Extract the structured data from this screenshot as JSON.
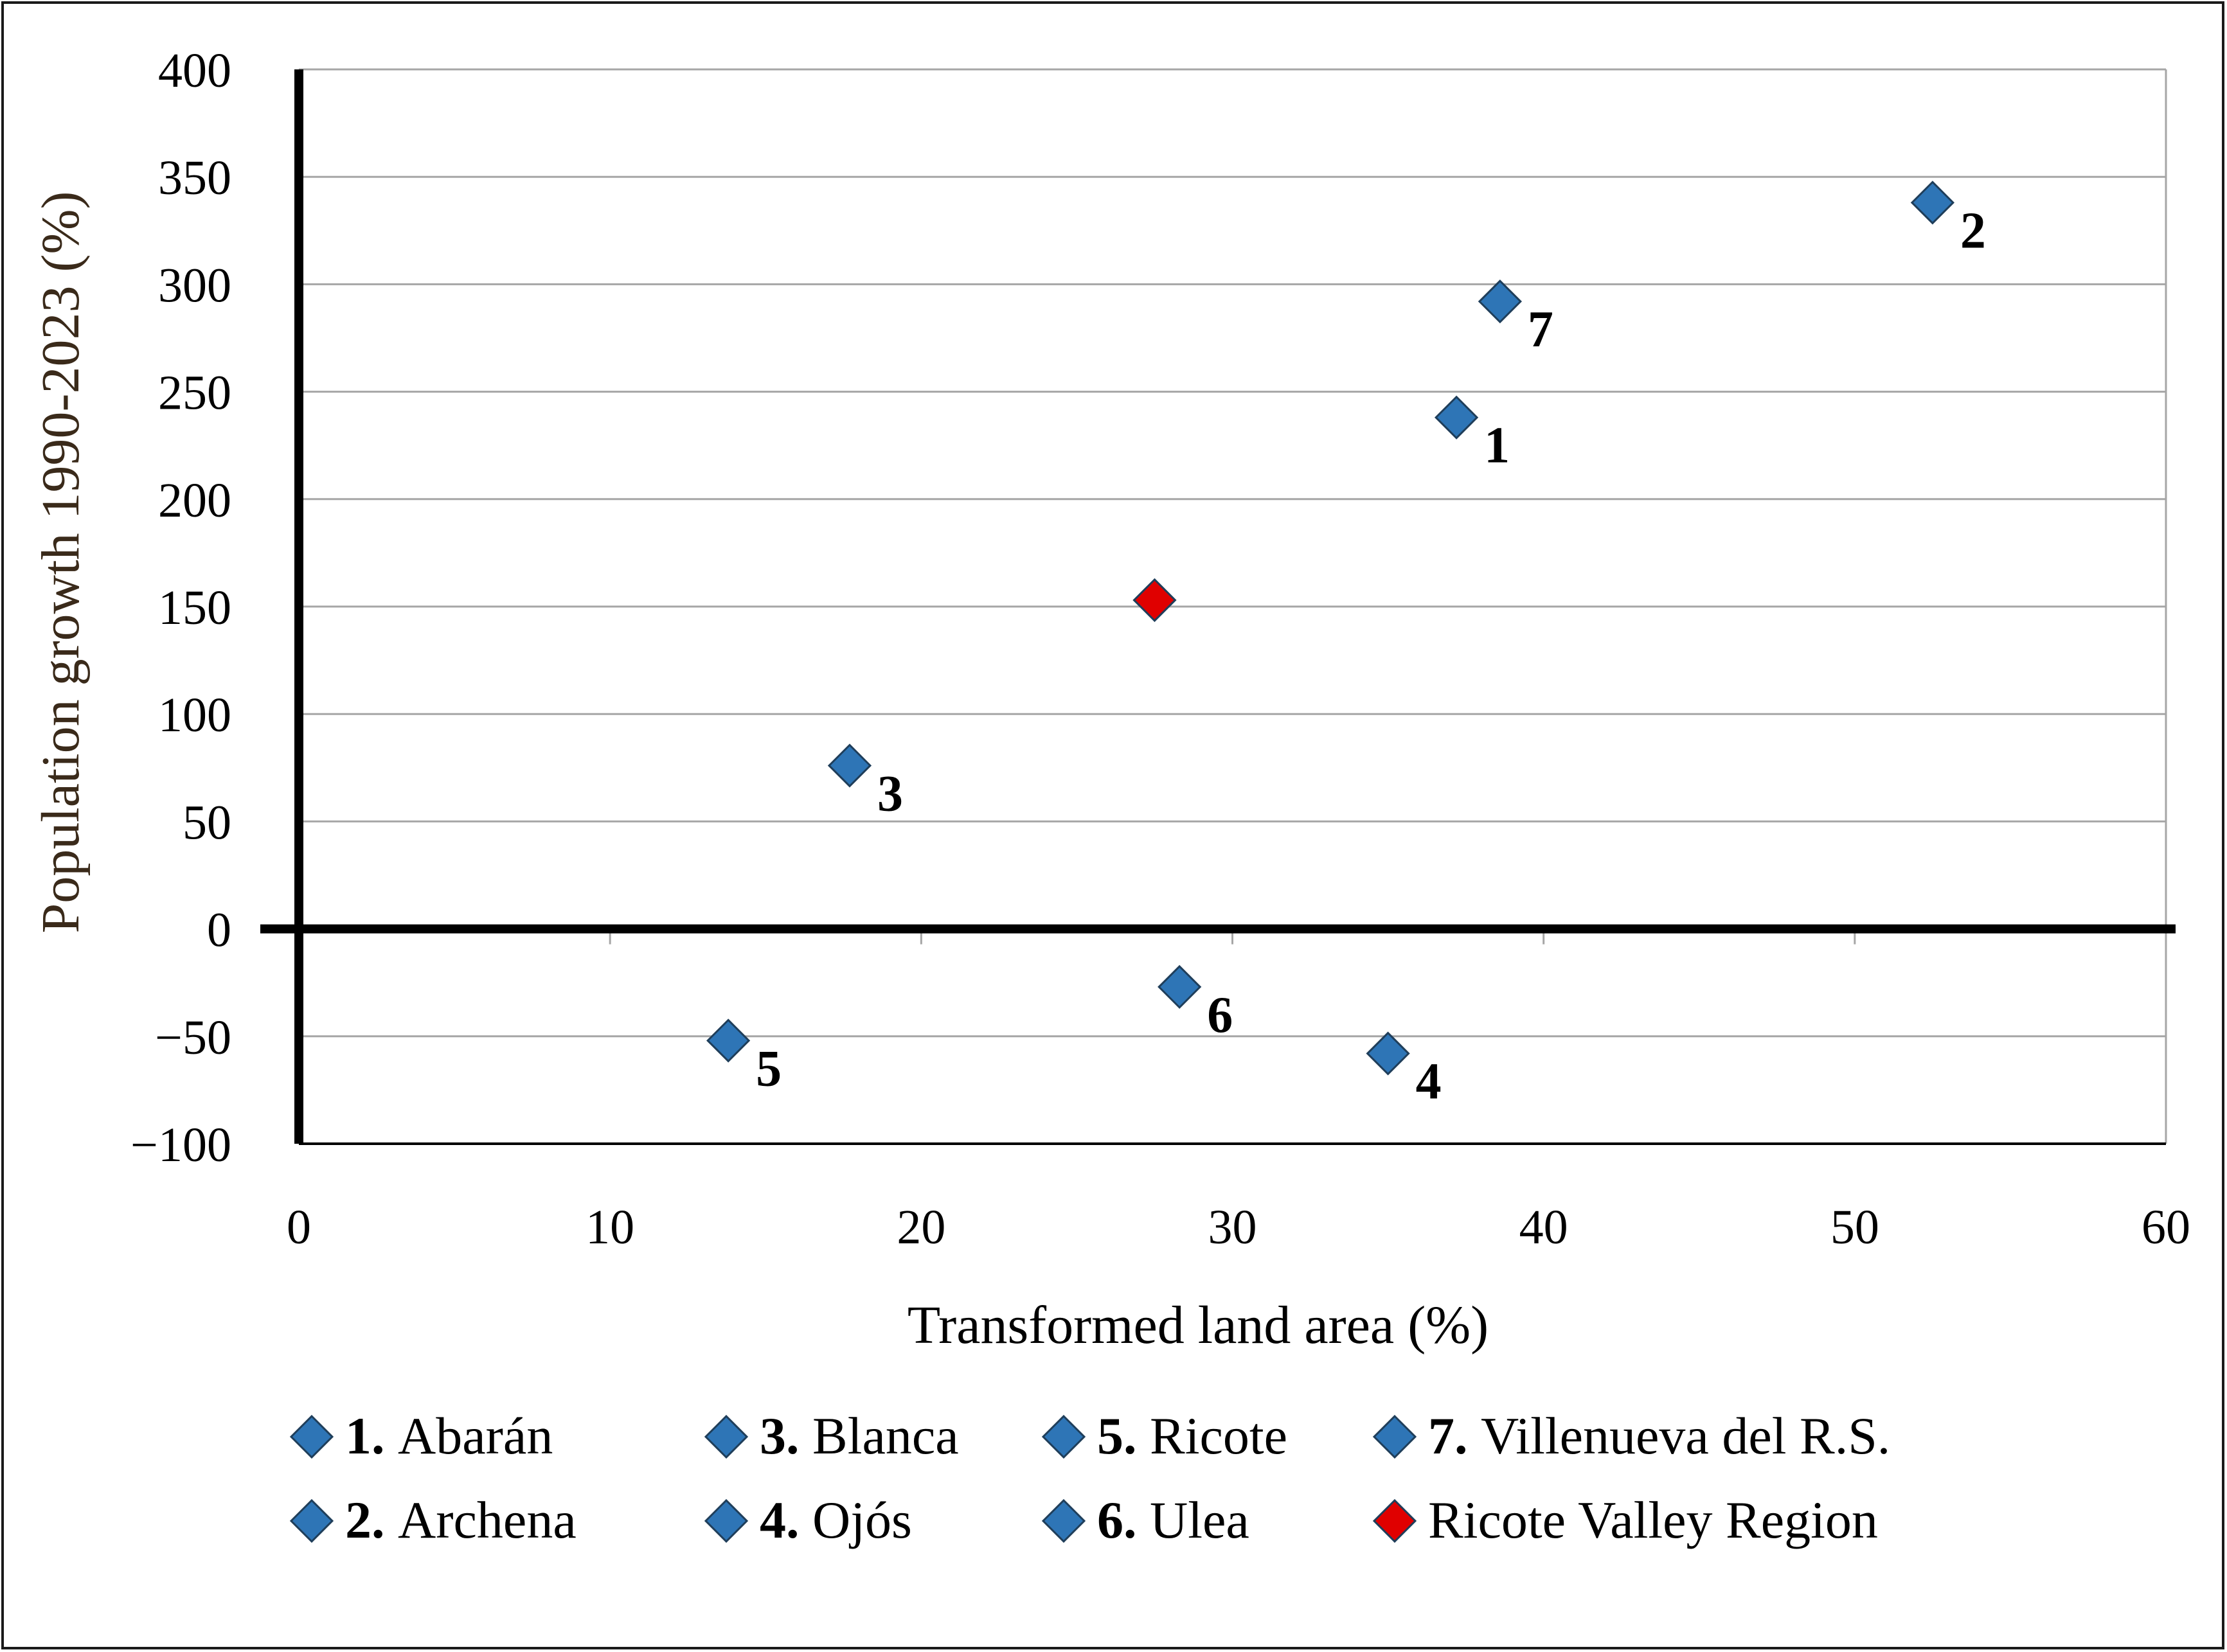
{
  "chart_data": {
    "type": "scatter",
    "title": "",
    "xlabel": "Transformed land area (%)",
    "ylabel": "Population growth 1990-2023 (%)",
    "xlim": [
      0,
      60
    ],
    "ylim": [
      -100,
      400
    ],
    "x_ticks": [
      {
        "value": 0,
        "label": "0"
      },
      {
        "value": 10,
        "label": "10"
      },
      {
        "value": 20,
        "label": "20"
      },
      {
        "value": 30,
        "label": "30"
      },
      {
        "value": 40,
        "label": "40"
      },
      {
        "value": 50,
        "label": "50"
      },
      {
        "value": 60,
        "label": "60"
      }
    ],
    "y_ticks": [
      {
        "value": 400,
        "label": "400"
      },
      {
        "value": 350,
        "label": "350"
      },
      {
        "value": 300,
        "label": "300"
      },
      {
        "value": 250,
        "label": "250"
      },
      {
        "value": 200,
        "label": "200"
      },
      {
        "value": 150,
        "label": "150"
      },
      {
        "value": 100,
        "label": "100"
      },
      {
        "value": 50,
        "label": "50"
      },
      {
        "value": 0,
        "label": "0"
      },
      {
        "value": -50,
        "label": "−50"
      },
      {
        "value": -100,
        "label": "−100"
      }
    ],
    "grid": true,
    "colors": {
      "municipality": "#2E75B6",
      "region": "#E00000",
      "marker_outline": "#1F3E5A",
      "axis": "#000000",
      "grid": "#A6A6A6",
      "ylabel": "#3A2A1A"
    },
    "points": [
      {
        "id": "1",
        "name": "Abarán",
        "x": 37.2,
        "y": 238,
        "series": "municipality",
        "label": "1"
      },
      {
        "id": "2",
        "name": "Archena",
        "x": 52.5,
        "y": 338,
        "series": "municipality",
        "label": "2"
      },
      {
        "id": "3",
        "name": "Blanca",
        "x": 17.7,
        "y": 76,
        "series": "municipality",
        "label": "3"
      },
      {
        "id": "4",
        "name": "Ojós",
        "x": 35.0,
        "y": -58,
        "series": "municipality",
        "label": "4"
      },
      {
        "id": "5",
        "name": "Ricote",
        "x": 13.8,
        "y": -52,
        "series": "municipality",
        "label": "5"
      },
      {
        "id": "6",
        "name": "Ulea",
        "x": 28.3,
        "y": -27,
        "series": "municipality",
        "label": "6"
      },
      {
        "id": "7",
        "name": "Villenueva del R.S.",
        "x": 38.6,
        "y": 292,
        "series": "municipality",
        "label": "7"
      },
      {
        "id": "region",
        "name": "Ricote Valley Region",
        "x": 27.5,
        "y": 153,
        "series": "region",
        "label": ""
      }
    ],
    "legend": {
      "placement": "bottom",
      "entries": [
        {
          "num": "1.",
          "name": "Abarán",
          "series": "municipality"
        },
        {
          "num": "3.",
          "name": "Blanca",
          "series": "municipality"
        },
        {
          "num": "5.",
          "name": "Ricote",
          "series": "municipality"
        },
        {
          "num": "7.",
          "name": "Villenueva del R.S.",
          "series": "municipality"
        },
        {
          "num": "2.",
          "name": "Archena",
          "series": "municipality"
        },
        {
          "num": "4.",
          "name": "Ojós",
          "series": "municipality"
        },
        {
          "num": "6.",
          "name": "Ulea",
          "series": "municipality"
        },
        {
          "num": "",
          "name": "Ricote Valley Region",
          "series": "region"
        }
      ]
    }
  }
}
